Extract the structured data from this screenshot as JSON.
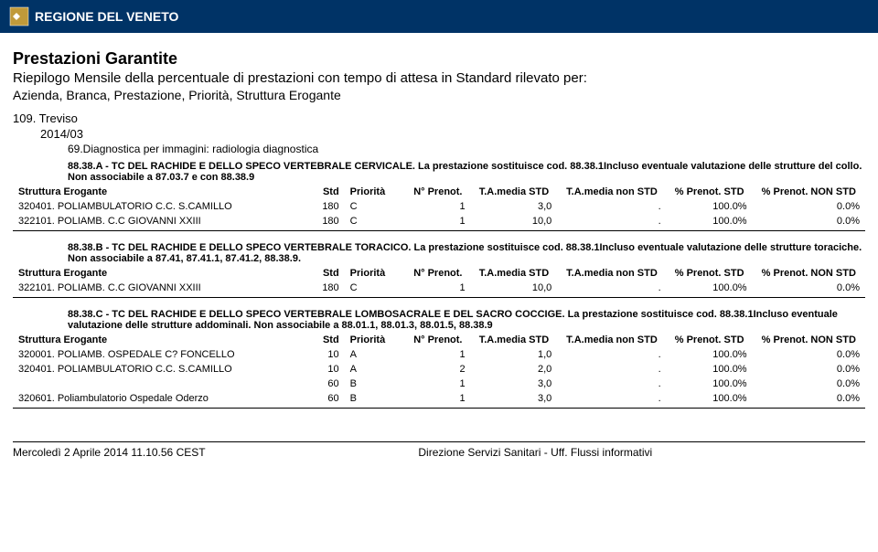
{
  "header": {
    "region": "REGIONE DEL VENETO"
  },
  "titles": {
    "main": "Prestazioni Garantite",
    "sub": "Riepilogo Mensile della percentuale di prestazioni con tempo di attesa in Standard rilevato per:",
    "sub2": "Azienda, Branca, Prestazione, Priorità, Struttura Erogante",
    "azienda": "109. Treviso",
    "periodo": "2014/03",
    "branca": "69.Diagnostica per immagini: radiologia diagnostica"
  },
  "columns": {
    "struttura": "Struttura Erogante",
    "std": "Std",
    "priorita": "Priorità",
    "n_prenot": "N° Prenot.",
    "ta_std": "T.A.media STD",
    "ta_non": "T.A.media non STD",
    "p_std": "% Prenot. STD",
    "p_non": "% Prenot. NON STD"
  },
  "sections": [
    {
      "desc": "88.38.A - TC DEL RACHIDE E DELLO SPECO VERTEBRALE CERVICALE. La prestazione sostituisce cod. 88.38.1Incluso eventuale valutazione delle strutture del collo. Non associabile a 87.03.7 e con 88.38.9",
      "rows": [
        {
          "struttura": "320401. POLIAMBULATORIO C.C. S.CAMILLO",
          "std": "180",
          "prio": "C",
          "n": "1",
          "tastd": "3,0",
          "tanon": ".",
          "pstd": "100.0%",
          "pnon": "0.0%"
        },
        {
          "struttura": "322101. POLIAMB. C.C GIOVANNI XXIII",
          "std": "180",
          "prio": "C",
          "n": "1",
          "tastd": "10,0",
          "tanon": ".",
          "pstd": "100.0%",
          "pnon": "0.0%"
        }
      ]
    },
    {
      "desc": "88.38.B - TC DEL RACHIDE E DELLO SPECO VERTEBRALE TORACICO. La prestazione sostituisce cod. 88.38.1Incluso eventuale valutazione delle strutture toraciche. Non associabile a 87.41, 87.41.1, 87.41.2, 88.38.9.",
      "rows": [
        {
          "struttura": "322101. POLIAMB. C.C GIOVANNI XXIII",
          "std": "180",
          "prio": "C",
          "n": "1",
          "tastd": "10,0",
          "tanon": ".",
          "pstd": "100.0%",
          "pnon": "0.0%"
        }
      ]
    },
    {
      "desc": "88.38.C - TC DEL RACHIDE E DELLO SPECO VERTEBRALE LOMBOSACRALE E DEL SACRO COCCIGE. La prestazione sostituisce cod. 88.38.1Incluso eventuale valutazione delle strutture addominali. Non associabile a 88.01.1, 88.01.3, 88.01.5, 88.38.9",
      "rows": [
        {
          "struttura": "320001. POLIAMB. OSPEDALE C? FONCELLO",
          "std": "10",
          "prio": "A",
          "n": "1",
          "tastd": "1,0",
          "tanon": ".",
          "pstd": "100.0%",
          "pnon": "0.0%"
        },
        {
          "struttura": "320401. POLIAMBULATORIO C.C. S.CAMILLO",
          "std": "10",
          "prio": "A",
          "n": "2",
          "tastd": "2,0",
          "tanon": ".",
          "pstd": "100.0%",
          "pnon": "0.0%"
        },
        {
          "struttura": "",
          "std": "60",
          "prio": "B",
          "n": "1",
          "tastd": "3,0",
          "tanon": ".",
          "pstd": "100.0%",
          "pnon": "0.0%"
        },
        {
          "struttura": "320601. Poliambulatorio Ospedale Oderzo",
          "std": "60",
          "prio": "B",
          "n": "1",
          "tastd": "3,0",
          "tanon": ".",
          "pstd": "100.0%",
          "pnon": "0.0%"
        }
      ]
    }
  ],
  "footer": {
    "left": "Mercoledì 2 Aprile 2014 11.10.56 CEST",
    "center": "Direzione Servizi Sanitari - Uff. Flussi informativi"
  }
}
